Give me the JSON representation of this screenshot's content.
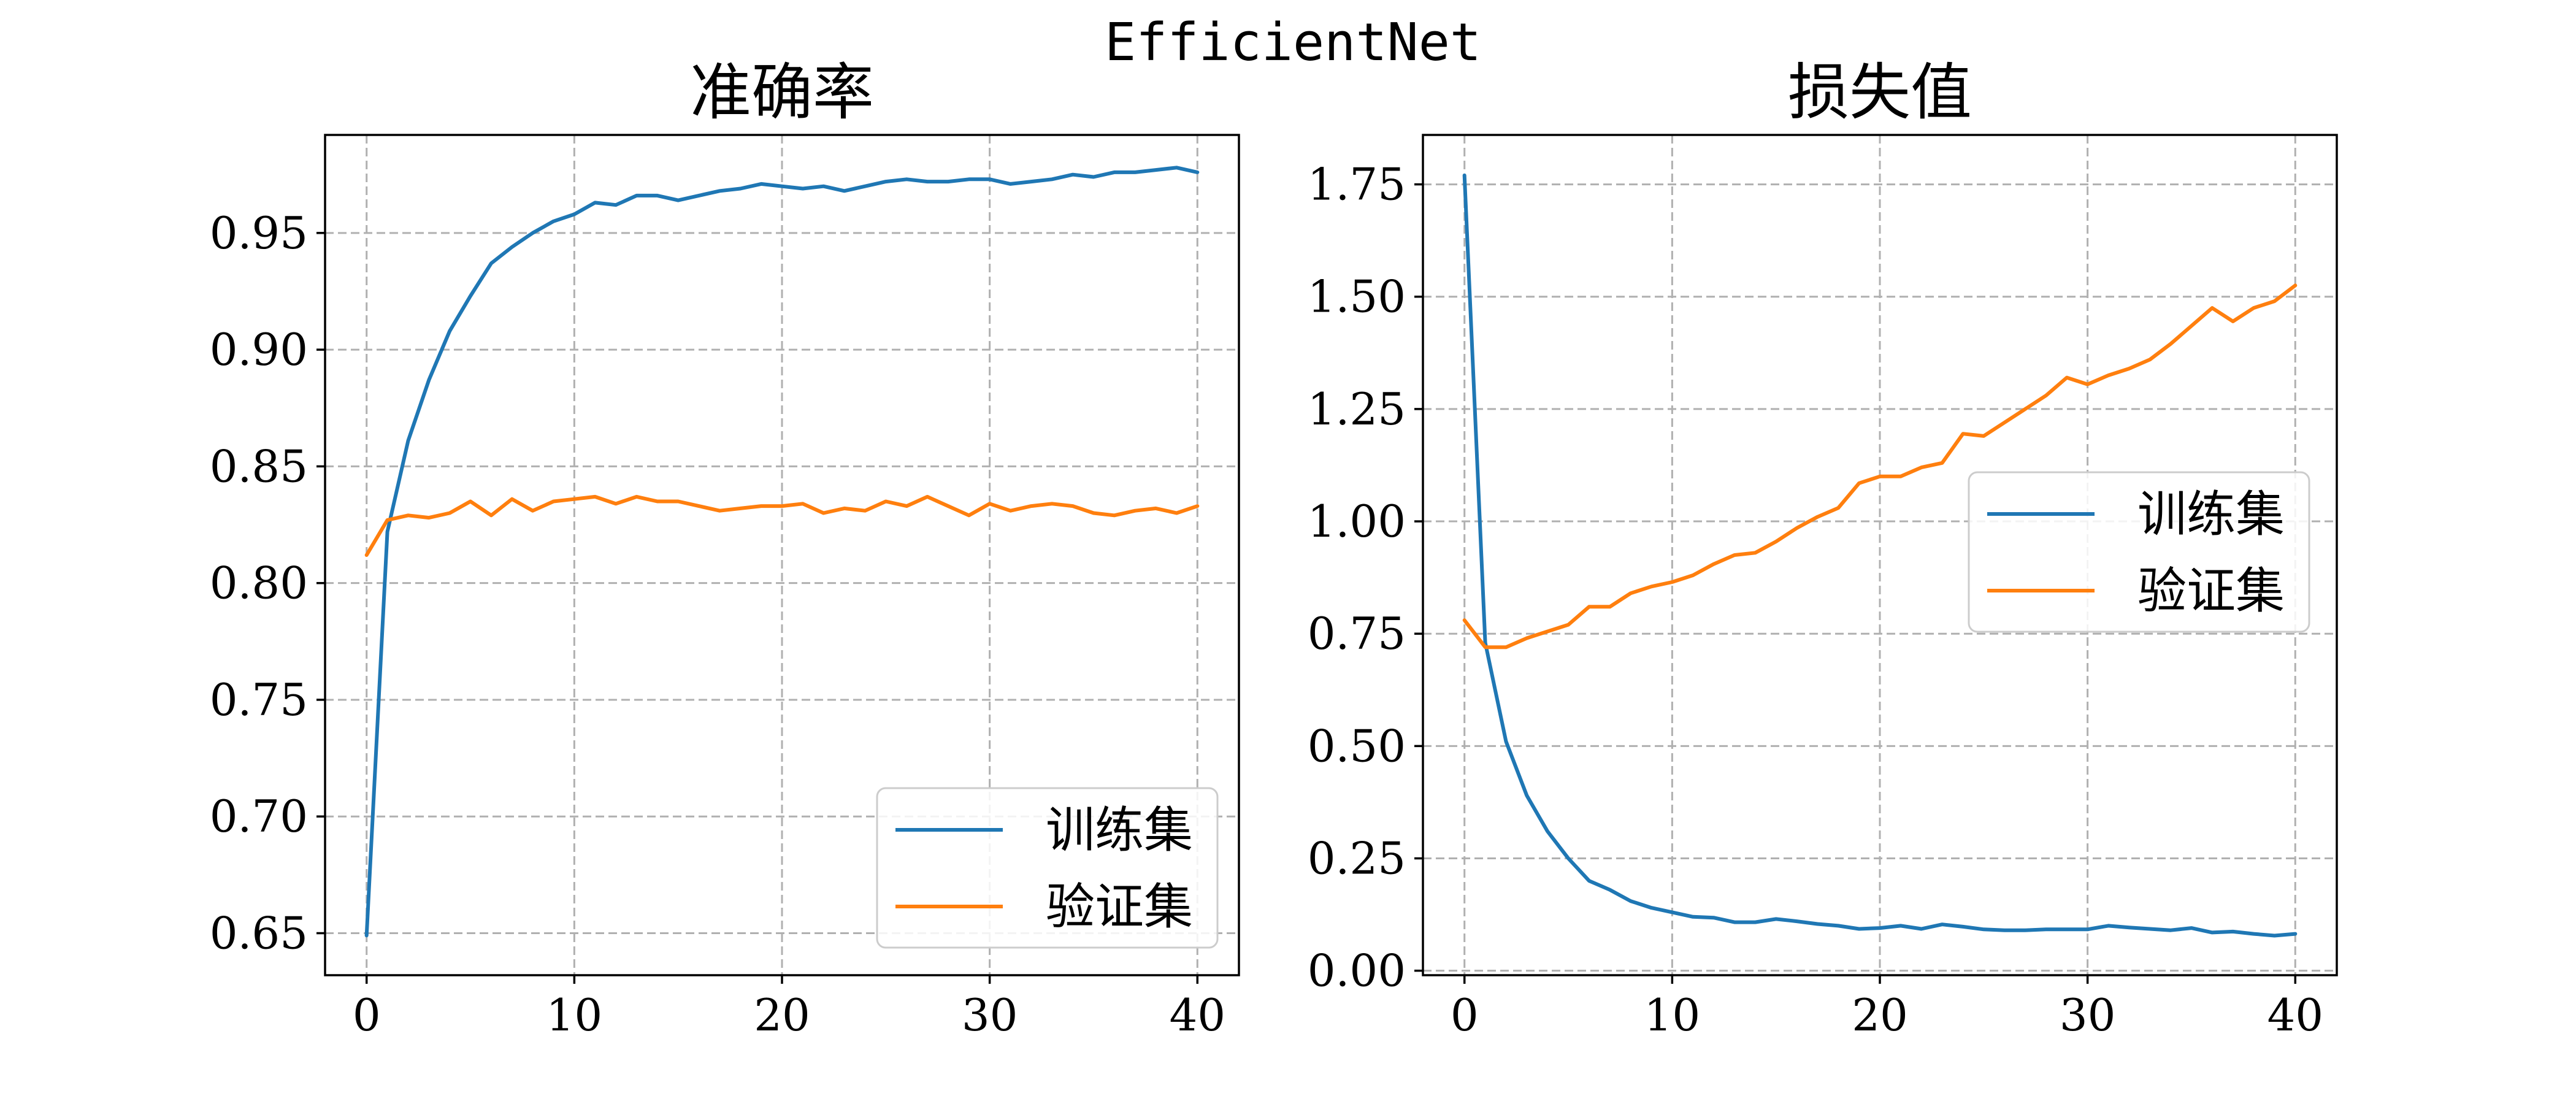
{
  "figure": {
    "suptitle": "EfficientNet"
  },
  "chart_data": [
    {
      "type": "line",
      "title": "准确率",
      "xlabel": "",
      "ylabel": "",
      "xlim": [
        -2,
        42
      ],
      "ylim": [
        0.632,
        0.992
      ],
      "xticks": [
        0,
        10,
        20,
        30,
        40
      ],
      "xtick_labels": [
        "0",
        "10",
        "20",
        "30",
        "40"
      ],
      "yticks": [
        0.65,
        0.7,
        0.75,
        0.8,
        0.85,
        0.9,
        0.95
      ],
      "ytick_labels": [
        "0.65",
        "0.70",
        "0.75",
        "0.80",
        "0.85",
        "0.90",
        "0.95"
      ],
      "grid": true,
      "legend": {
        "loc": "lower-right",
        "entries": [
          "训练集",
          "验证集"
        ]
      },
      "x": [
        0,
        1,
        2,
        3,
        4,
        5,
        6,
        7,
        8,
        9,
        10,
        11,
        12,
        13,
        14,
        15,
        16,
        17,
        18,
        19,
        20,
        21,
        22,
        23,
        24,
        25,
        26,
        27,
        28,
        29,
        30,
        31,
        32,
        33,
        34,
        35,
        36,
        37,
        38,
        39,
        40
      ],
      "series": [
        {
          "name": "训练集",
          "color": "#1f77b4",
          "values": [
            0.649,
            0.822,
            0.861,
            0.887,
            0.908,
            0.923,
            0.937,
            0.944,
            0.95,
            0.955,
            0.958,
            0.963,
            0.962,
            0.966,
            0.966,
            0.964,
            0.966,
            0.968,
            0.969,
            0.971,
            0.97,
            0.969,
            0.97,
            0.968,
            0.97,
            0.972,
            0.973,
            0.972,
            0.972,
            0.973,
            0.973,
            0.971,
            0.972,
            0.973,
            0.975,
            0.974,
            0.976,
            0.976,
            0.977,
            0.978,
            0.976
          ]
        },
        {
          "name": "验证集",
          "color": "#ff7f0e",
          "values": [
            0.812,
            0.827,
            0.829,
            0.828,
            0.83,
            0.835,
            0.829,
            0.836,
            0.831,
            0.835,
            0.836,
            0.837,
            0.834,
            0.837,
            0.835,
            0.835,
            0.833,
            0.831,
            0.832,
            0.833,
            0.833,
            0.834,
            0.83,
            0.832,
            0.831,
            0.835,
            0.833,
            0.837,
            0.833,
            0.829,
            0.834,
            0.831,
            0.833,
            0.834,
            0.833,
            0.83,
            0.829,
            0.831,
            0.832,
            0.83,
            0.833
          ]
        }
      ]
    },
    {
      "type": "line",
      "title": "损失值",
      "xlabel": "",
      "ylabel": "",
      "xlim": [
        -2,
        42
      ],
      "ylim": [
        -0.01,
        1.86
      ],
      "xticks": [
        0,
        10,
        20,
        30,
        40
      ],
      "xtick_labels": [
        "0",
        "10",
        "20",
        "30",
        "40"
      ],
      "yticks": [
        0.0,
        0.25,
        0.5,
        0.75,
        1.0,
        1.25,
        1.5,
        1.75
      ],
      "ytick_labels": [
        "0.00",
        "0.25",
        "0.50",
        "0.75",
        "1.00",
        "1.25",
        "1.50",
        "1.75"
      ],
      "grid": true,
      "legend": {
        "loc": "center-right",
        "entries": [
          "训练集",
          "验证集"
        ]
      },
      "x": [
        0,
        1,
        2,
        3,
        4,
        5,
        6,
        7,
        8,
        9,
        10,
        11,
        12,
        13,
        14,
        15,
        16,
        17,
        18,
        19,
        20,
        21,
        22,
        23,
        24,
        25,
        26,
        27,
        28,
        29,
        30,
        31,
        32,
        33,
        34,
        35,
        36,
        37,
        38,
        39,
        40
      ],
      "series": [
        {
          "name": "训练集",
          "color": "#1f77b4",
          "values": [
            1.77,
            0.73,
            0.51,
            0.39,
            0.31,
            0.25,
            0.2,
            0.18,
            0.155,
            0.14,
            0.13,
            0.12,
            0.118,
            0.108,
            0.108,
            0.115,
            0.11,
            0.104,
            0.1,
            0.093,
            0.095,
            0.1,
            0.093,
            0.103,
            0.098,
            0.092,
            0.09,
            0.09,
            0.092,
            0.092,
            0.092,
            0.1,
            0.096,
            0.093,
            0.09,
            0.095,
            0.085,
            0.087,
            0.082,
            0.078,
            0.082
          ]
        },
        {
          "name": "验证集",
          "color": "#ff7f0e",
          "values": [
            0.78,
            0.72,
            0.72,
            0.74,
            0.755,
            0.77,
            0.81,
            0.81,
            0.84,
            0.855,
            0.865,
            0.88,
            0.905,
            0.925,
            0.93,
            0.955,
            0.985,
            1.01,
            1.03,
            1.085,
            1.1,
            1.1,
            1.12,
            1.13,
            1.195,
            1.19,
            1.22,
            1.25,
            1.28,
            1.32,
            1.305,
            1.325,
            1.34,
            1.36,
            1.395,
            1.435,
            1.475,
            1.445,
            1.475,
            1.49,
            1.525
          ]
        }
      ]
    }
  ]
}
